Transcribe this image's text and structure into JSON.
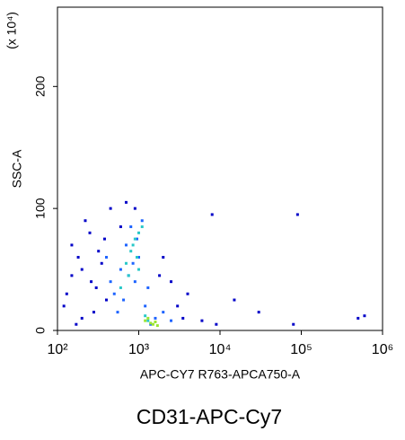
{
  "chart_data": {
    "type": "scatter",
    "y_label": "SSC-A",
    "y_unit": "(x 10⁴)",
    "x_label": "APC-CY7 R763-APCA750-A",
    "caption": "CD31-APC-Cy7",
    "xscale": "log",
    "xlim": [
      100,
      1000000
    ],
    "xticks": [
      {
        "value": 100,
        "label": "10²"
      },
      {
        "value": 1000,
        "label": "10³"
      },
      {
        "value": 10000,
        "label": "10⁴"
      },
      {
        "value": 100000,
        "label": "10⁵"
      },
      {
        "value": 1000000,
        "label": "10⁶"
      }
    ],
    "ylim": [
      0,
      265
    ],
    "yticks": [
      0,
      100,
      200
    ],
    "series": [
      {
        "color": "#0000c8",
        "x": [
          120,
          150,
          180,
          200,
          250,
          300,
          350,
          400,
          150,
          220,
          280,
          320,
          450,
          600,
          2500,
          3000,
          3500,
          4000,
          8000,
          9000,
          15000,
          30000,
          80000,
          90000,
          500000,
          600000,
          200,
          130,
          170,
          260,
          380,
          2000,
          1800,
          700,
          900,
          6000
        ],
        "values": [
          20,
          45,
          60,
          10,
          80,
          35,
          55,
          25,
          70,
          90,
          15,
          65,
          100,
          85,
          40,
          20,
          10,
          30,
          95,
          5,
          25,
          15,
          5,
          95,
          10,
          12,
          50,
          30,
          5,
          40,
          75,
          60,
          45,
          105,
          100,
          8
        ]
      },
      {
        "color": "#1e64ff",
        "x": [
          500,
          600,
          700,
          800,
          900,
          1000,
          1100,
          1200,
          550,
          650,
          750,
          850,
          950,
          1300,
          1600,
          2000,
          2500,
          400,
          450,
          1400
        ],
        "values": [
          30,
          50,
          70,
          85,
          40,
          60,
          90,
          20,
          15,
          25,
          45,
          55,
          75,
          35,
          10,
          15,
          8,
          60,
          40,
          5
        ]
      },
      {
        "color": "#28c8c8",
        "x": [
          700,
          800,
          900,
          1000,
          750,
          850,
          950,
          1100,
          600,
          1200,
          1300,
          1000
        ],
        "values": [
          55,
          65,
          75,
          80,
          45,
          70,
          60,
          85,
          35,
          12,
          8,
          50
        ]
      },
      {
        "color": "#9be632",
        "x": [
          1200,
          1400,
          1500,
          1600,
          1300,
          1700
        ],
        "values": [
          8,
          6,
          5,
          7,
          10,
          4
        ]
      }
    ]
  }
}
